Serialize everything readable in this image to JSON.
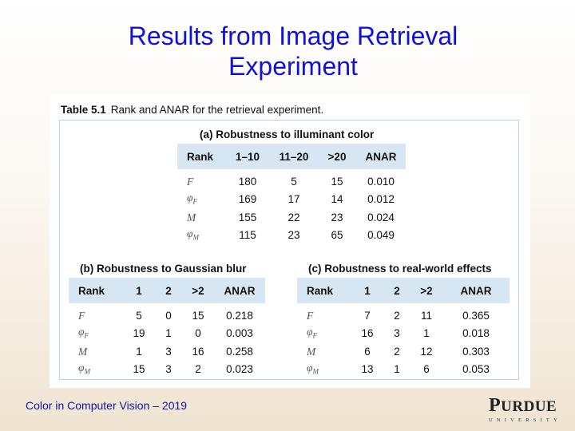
{
  "slide": {
    "title_line1": "Results from Image Retrieval",
    "title_line2": "Experiment",
    "footer": "Color in Computer Vision – 2019"
  },
  "logo": {
    "word_initial": "P",
    "word_rest": "URDUE",
    "sub": "UNIVERSITY"
  },
  "table": {
    "number": "Table 5.1",
    "caption": "Rank and ANAR for the retrieval experiment.",
    "a": {
      "title": "(a) Robustness to illuminant color",
      "headers": [
        "Rank",
        "1–10",
        "11–20",
        ">20",
        "ANAR"
      ],
      "rows": [
        {
          "label": "F",
          "sub": "",
          "values": [
            "180",
            "5",
            "15",
            "0.010"
          ]
        },
        {
          "label": "φ",
          "sub": "F",
          "values": [
            "169",
            "17",
            "14",
            "0.012"
          ]
        },
        {
          "label": "M",
          "sub": "",
          "values": [
            "155",
            "22",
            "23",
            "0.024"
          ]
        },
        {
          "label": "φ",
          "sub": "M",
          "values": [
            "115",
            "23",
            "65",
            "0.049"
          ]
        }
      ]
    },
    "b": {
      "title": "(b) Robustness to Gaussian blur",
      "headers": [
        "Rank",
        "1",
        "2",
        ">2",
        "ANAR"
      ],
      "rows": [
        {
          "label": "F",
          "sub": "",
          "values": [
            "5",
            "0",
            "15",
            "0.218"
          ]
        },
        {
          "label": "φ",
          "sub": "F",
          "values": [
            "19",
            "1",
            "0",
            "0.003"
          ]
        },
        {
          "label": "M",
          "sub": "",
          "values": [
            "1",
            "3",
            "16",
            "0.258"
          ]
        },
        {
          "label": "φ",
          "sub": "M",
          "values": [
            "15",
            "3",
            "2",
            "0.023"
          ]
        }
      ]
    },
    "c": {
      "title": "(c) Robustness to real-world effects",
      "headers": [
        "Rank",
        "1",
        "2",
        ">2",
        "ANAR"
      ],
      "rows": [
        {
          "label": "F",
          "sub": "",
          "values": [
            "7",
            "2",
            "11",
            "0.365"
          ]
        },
        {
          "label": "φ",
          "sub": "F",
          "values": [
            "16",
            "3",
            "1",
            "0.018"
          ]
        },
        {
          "label": "M",
          "sub": "",
          "values": [
            "6",
            "2",
            "12",
            "0.303"
          ]
        },
        {
          "label": "φ",
          "sub": "M",
          "values": [
            "13",
            "1",
            "6",
            "0.053"
          ]
        }
      ]
    }
  }
}
